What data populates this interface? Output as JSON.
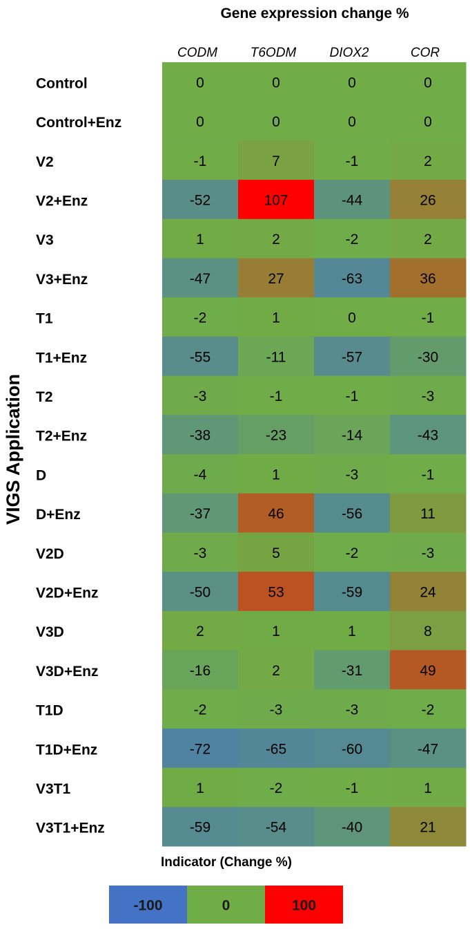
{
  "chart_data": {
    "type": "heatmap",
    "title": "Gene expression change %",
    "ylabel": "VIGS Application",
    "columns": [
      "CODM",
      "T6ODM",
      "DIOX2",
      "COR"
    ],
    "rows": [
      "Control",
      "Control+Enz",
      "V2",
      "V2+Enz",
      "V3",
      "V3+Enz",
      "T1",
      "T1+Enz",
      "T2",
      "T2+Enz",
      "D",
      "D+Enz",
      "V2D",
      "V2D+Enz",
      "V3D",
      "V3D+Enz",
      "T1D",
      "T1D+Enz",
      "V3T1",
      "V3T1+Enz"
    ],
    "values": [
      [
        0,
        0,
        0,
        0
      ],
      [
        0,
        0,
        0,
        0
      ],
      [
        -1,
        7,
        -1,
        2
      ],
      [
        -52,
        107,
        -44,
        26
      ],
      [
        1,
        2,
        -2,
        2
      ],
      [
        -47,
        27,
        -63,
        36
      ],
      [
        -2,
        1,
        0,
        -1
      ],
      [
        -55,
        -11,
        -57,
        -30
      ],
      [
        -3,
        -1,
        -1,
        -3
      ],
      [
        -38,
        -23,
        -14,
        -43
      ],
      [
        -4,
        1,
        -3,
        -1
      ],
      [
        -37,
        46,
        -56,
        11
      ],
      [
        -3,
        5,
        -2,
        -3
      ],
      [
        -50,
        53,
        -59,
        24
      ],
      [
        2,
        1,
        1,
        8
      ],
      [
        -16,
        2,
        -31,
        49
      ],
      [
        -2,
        -3,
        -3,
        -2
      ],
      [
        -72,
        -65,
        -60,
        -47
      ],
      [
        1,
        -2,
        -1,
        1
      ],
      [
        -59,
        -54,
        -40,
        21
      ]
    ],
    "color_scale": {
      "min": -100,
      "mid": 0,
      "max": 100,
      "min_color": "#4472c4",
      "mid_color": "#70ad47",
      "max_color": "#ff0000"
    },
    "legend": {
      "title": "Indicator (Change %)",
      "labels": [
        "-100",
        "0",
        "100"
      ]
    }
  }
}
